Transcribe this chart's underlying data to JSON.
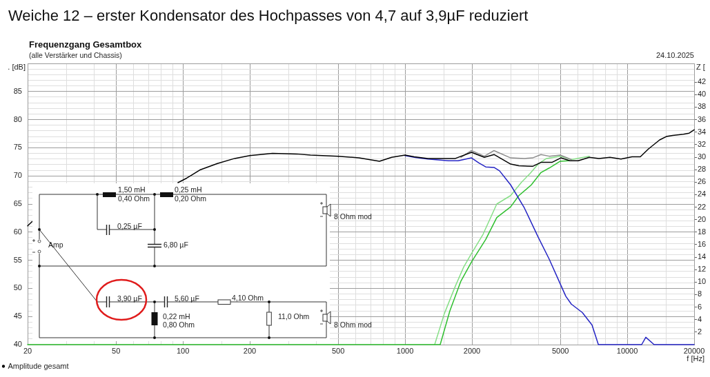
{
  "chart_data": {
    "type": "line",
    "title": "Weiche 12 – erster Kondensator des Hochpasses von 4,7 auf 3,9µF reduziert",
    "subtitle": "Frequenzgang Gesamtbox",
    "xlabel": "f [Hz]",
    "ylabel": ". [dB]",
    "y2label": "Z [",
    "annotations": [
      "(alle Verstärker und Chassis)",
      "24.10.2025",
      "1,50 mH",
      "0,40 Ohm",
      "0,25 mH",
      "0,20 Ohm",
      "0,25 µF",
      "6,80 µF",
      "Amp",
      "8 Ohm mod",
      "3,90 µF",
      "5,60 µF",
      "4,10 Ohm",
      "0,22 mH",
      "0,80 Ohm",
      "11,0 Ohm",
      "8 Ohm mod"
    ],
    "log": "x",
    "grid": true,
    "legend": "bottom left",
    "xlim": [
      20,
      20000
    ],
    "xticks": [
      20,
      {
        "value": 30,
        "label": null
      },
      {
        "value": 40,
        "label": null
      },
      50,
      {
        "value": 60,
        "label": null
      },
      {
        "value": 70,
        "label": null
      },
      {
        "value": 80,
        "label": null
      },
      {
        "value": 90,
        "label": null
      },
      100,
      {
        "value": 150,
        "label": null
      },
      200,
      {
        "value": 300,
        "label": null
      },
      {
        "value": 400,
        "label": null
      },
      500,
      {
        "value": 600,
        "label": null
      },
      {
        "value": 700,
        "label": null
      },
      {
        "value": 800,
        "label": null
      },
      {
        "value": 900,
        "label": null
      },
      1000,
      {
        "value": 1500,
        "label": null
      },
      2000,
      {
        "value": 3000,
        "label": null
      },
      {
        "value": 4000,
        "label": null
      },
      5000,
      {
        "value": 6000,
        "label": null
      },
      {
        "value": 7000,
        "label": null
      },
      {
        "value": 8000,
        "label": null
      },
      {
        "value": 9000,
        "label": null
      },
      10000,
      {
        "value": 15000,
        "label": null
      },
      20000
    ],
    "ylim": [
      40,
      90
    ],
    "yticks": [
      40,
      {
        "value": 41,
        "label": null
      },
      {
        "value": 42,
        "label": null
      },
      {
        "value": 43,
        "label": null
      },
      {
        "value": 44,
        "label": null
      },
      45,
      {
        "value": 46,
        "label": null
      },
      {
        "value": 47,
        "label": null
      },
      {
        "value": 48,
        "label": null
      },
      {
        "value": 49,
        "label": null
      },
      50,
      {
        "value": 51,
        "label": null
      },
      {
        "value": 52,
        "label": null
      },
      {
        "value": 53,
        "label": null
      },
      {
        "value": 54,
        "label": null
      },
      55,
      {
        "value": 56,
        "label": null
      },
      {
        "value": 57,
        "label": null
      },
      {
        "value": 58,
        "label": null
      },
      {
        "value": 59,
        "label": null
      },
      60,
      {
        "value": 61,
        "label": null
      },
      {
        "value": 62,
        "label": null
      },
      {
        "value": 63,
        "label": null
      },
      {
        "value": 64,
        "label": null
      },
      65,
      {
        "value": 66,
        "label": null
      },
      {
        "value": 67,
        "label": null
      },
      {
        "value": 68,
        "label": null
      },
      {
        "value": 69,
        "label": null
      },
      70,
      {
        "value": 71,
        "label": null
      },
      {
        "value": 72,
        "label": null
      },
      {
        "value": 73,
        "label": null
      },
      {
        "value": 74,
        "label": null
      },
      75,
      {
        "value": 76,
        "label": null
      },
      {
        "value": 77,
        "label": null
      },
      {
        "value": 78,
        "label": null
      },
      {
        "value": 79,
        "label": null
      },
      80,
      {
        "value": 81,
        "label": null
      },
      {
        "value": 82,
        "label": null
      },
      {
        "value": 83,
        "label": null
      },
      {
        "value": 84,
        "label": null
      },
      85,
      {
        "value": 86,
        "label": null
      },
      {
        "value": 87,
        "label": null
      },
      {
        "value": 88,
        "label": null
      },
      {
        "value": 89,
        "label": null
      },
      {
        "value": 90,
        "label": null
      }
    ],
    "y2lim": [
      0,
      45
    ],
    "y2ticks": [
      2,
      4,
      6,
      8,
      10,
      12,
      14,
      16,
      18,
      20,
      22,
      24,
      26,
      28,
      30,
      32,
      34,
      36,
      38,
      40,
      42
    ],
    "series": [
      {
        "name": "Amplitude gesamt",
        "color": "#000000",
        "x": [
          20,
          21,
          22,
          95,
          104,
          120,
          143,
          171,
          200,
          253,
          325,
          375,
          500,
          620,
          767,
          870,
          1000,
          1100,
          1266,
          1500,
          1684,
          1990,
          2274,
          2514,
          2986,
          3252,
          3750,
          4090,
          4582,
          5026,
          5520,
          6017,
          6746,
          7456,
          8360,
          9370,
          10510,
          11450,
          12470,
          13990,
          15000,
          16020,
          17900,
          19000,
          20000
        ],
        "values": [
          61.1,
          61.9,
          null,
          68.8,
          69.6,
          71.1,
          72.2,
          73.1,
          73.6,
          74.0,
          73.9,
          73.7,
          73.5,
          73.2,
          72.6,
          73.3,
          73.7,
          73.4,
          73.1,
          73.1,
          73.1,
          74.2,
          73.3,
          73.8,
          72.1,
          71.8,
          71.7,
          72.4,
          72.4,
          73.2,
          72.7,
          72.7,
          73.3,
          73.1,
          73.3,
          73.0,
          73.4,
          73.4,
          74.8,
          76.4,
          77.0,
          77.2,
          77.4,
          77.6,
          78.2
        ]
      },
      {
        "color": "#8c8c8c",
        "x": [
          1784,
          1990,
          2274,
          2514,
          2986,
          3443,
          3750,
          4090,
          4454,
          4994,
          5602
        ],
        "values": [
          73.3,
          74.5,
          73.5,
          74.5,
          73.2,
          73.1,
          73.2,
          73.8,
          73.5,
          73.7,
          72.9
        ]
      },
      {
        "color": "#2424c4",
        "x": [
          1000,
          1100,
          1266,
          1568,
          1734,
          1990,
          2148,
          2307,
          2514,
          2662,
          2986,
          3443,
          3974,
          4454,
          4994,
          5290,
          5602,
          6280,
          6940,
          7414,
          11610,
          12120,
          13210,
          20000
        ],
        "values": [
          73.6,
          73.3,
          73.0,
          72.7,
          72.7,
          73.2,
          72.3,
          71.6,
          71.5,
          70.9,
          68.4,
          64.3,
          59.1,
          55.2,
          50.8,
          48.6,
          47.2,
          45.7,
          43.5,
          40,
          40,
          41.3,
          40,
          40
        ]
      },
      {
        "color": "#2ebf2e",
        "x": [
          20,
          1439,
          1591,
          1784,
          1990,
          2307,
          2587,
          2986,
          3252,
          3700,
          4090,
          4454,
          4994,
          5444
        ],
        "values": [
          40,
          40,
          46.0,
          51.3,
          54.7,
          58.7,
          62.6,
          64.5,
          66.5,
          68.4,
          70.6,
          71.4,
          72.6,
          72.7
        ]
      },
      {
        "color": "#86df86",
        "x": [
          1359,
          1502,
          1684,
          1836,
          1990,
          2243,
          2587,
          2986,
          3346,
          3646,
          3974,
          4328,
          4994,
          5602,
          6746
        ],
        "values": [
          40,
          45.5,
          50.4,
          53.8,
          56.2,
          59.6,
          65.0,
          66.5,
          68.9,
          70.4,
          72.1,
          73.1,
          73.5,
          72.9,
          73.5
        ]
      }
    ]
  }
}
